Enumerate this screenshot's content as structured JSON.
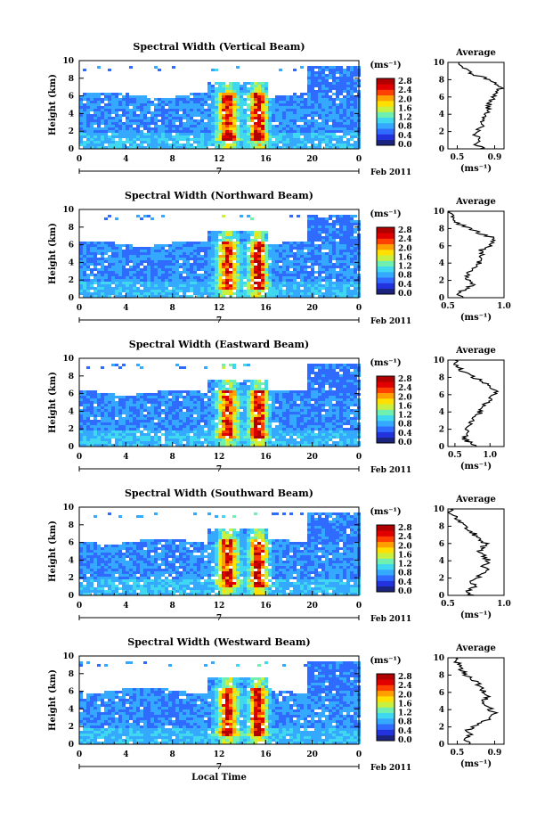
{
  "figure": {
    "xlabel_bottom": "Local Time",
    "date_label": "Feb 2011",
    "day_label": "7"
  },
  "colors": {
    "scale": [
      "#1a237e",
      "#2233dd",
      "#2f6bff",
      "#35a8ff",
      "#3fd8f0",
      "#6ff0b0",
      "#c8f040",
      "#ffe000",
      "#ffa000",
      "#ff4000",
      "#e00000",
      "#b00000"
    ]
  },
  "chart_data": [
    {
      "type": "heatmap",
      "title": "Spectral Width (Vertical Beam)",
      "ylabel": "Height (km)",
      "xticks": [
        "0",
        "4",
        "8",
        "12",
        "16",
        "20",
        "0"
      ],
      "xlim": [
        0,
        24
      ],
      "yticks": [
        "0",
        "2",
        "4",
        "6",
        "8",
        "10"
      ],
      "ylim": [
        0,
        10
      ],
      "colorbar": {
        "unit": "(ms⁻¹)",
        "ticks": [
          "0.0",
          "0.4",
          "0.8",
          "1.2",
          "1.6",
          "2.0",
          "2.4",
          "2.8"
        ]
      },
      "profile": {
        "title": "Average",
        "xlabel": "(ms⁻¹)",
        "xticks": [
          "0.5",
          "0.9"
        ],
        "xlim": [
          0.4,
          1.0
        ],
        "yticks": [
          "0",
          "2",
          "4",
          "6",
          "8",
          "10"
        ],
        "height": [
          0,
          0.5,
          1,
          1.5,
          2,
          2.5,
          3,
          3.5,
          4,
          4.5,
          5,
          5.5,
          6,
          6.5,
          7,
          7.5,
          8,
          8.5,
          9,
          9.5,
          10
        ],
        "value": [
          0.78,
          0.7,
          0.73,
          0.7,
          0.72,
          0.75,
          0.78,
          0.8,
          0.82,
          0.83,
          0.84,
          0.86,
          0.88,
          0.92,
          0.96,
          0.9,
          0.85,
          0.7,
          0.6,
          0.55,
          0.52
        ]
      }
    },
    {
      "type": "heatmap",
      "title": "Spectral Width (Northward Beam)",
      "ylabel": "Height (km)",
      "xticks": [
        "0",
        "4",
        "8",
        "12",
        "16",
        "20",
        "0"
      ],
      "xlim": [
        0,
        24
      ],
      "yticks": [
        "0",
        "2",
        "4",
        "6",
        "8",
        "10"
      ],
      "ylim": [
        0,
        10
      ],
      "colorbar": {
        "unit": "(ms⁻¹)",
        "ticks": [
          "0.0",
          "0.4",
          "0.8",
          "1.2",
          "1.6",
          "2.0",
          "2.4",
          "2.8"
        ]
      },
      "profile": {
        "title": "Average",
        "xlabel": "(ms⁻¹)",
        "xticks": [
          "0.5",
          "1.0"
        ],
        "xlim": [
          0.5,
          1.0
        ],
        "yticks": [
          "0",
          "2",
          "4",
          "6",
          "8",
          "10"
        ],
        "height": [
          0,
          0.5,
          1,
          1.5,
          2,
          2.5,
          3,
          3.5,
          4,
          4.5,
          5,
          5.5,
          6,
          6.5,
          7,
          7.5,
          8,
          8.5,
          9,
          9.5,
          10
        ],
        "value": [
          0.62,
          0.58,
          0.66,
          0.72,
          0.68,
          0.66,
          0.7,
          0.74,
          0.78,
          0.8,
          0.82,
          0.8,
          0.86,
          0.9,
          0.88,
          0.78,
          0.7,
          0.6,
          0.56,
          0.54,
          0.52
        ]
      }
    },
    {
      "type": "heatmap",
      "title": "Spectral Width (Eastward Beam)",
      "ylabel": "Height (km)",
      "xticks": [
        "0",
        "4",
        "8",
        "12",
        "16",
        "20",
        "0"
      ],
      "xlim": [
        0,
        24
      ],
      "yticks": [
        "0",
        "2",
        "4",
        "6",
        "8",
        "10"
      ],
      "ylim": [
        0,
        10
      ],
      "colorbar": {
        "unit": "(ms⁻¹)",
        "ticks": [
          "0.0",
          "0.4",
          "0.8",
          "1.2",
          "1.6",
          "2.0",
          "2.4",
          "2.8"
        ]
      },
      "profile": {
        "title": "Average",
        "xlabel": "(ms⁻¹)",
        "xticks": [
          "0.5",
          "1.0"
        ],
        "xlim": [
          0.4,
          1.2
        ],
        "yticks": [
          "0",
          "2",
          "4",
          "6",
          "8",
          "10"
        ],
        "height": [
          0,
          0.5,
          1,
          1.5,
          2,
          2.5,
          3,
          3.5,
          4,
          4.5,
          5,
          5.5,
          6,
          6.5,
          7,
          7.5,
          8,
          8.5,
          9,
          9.5,
          10
        ],
        "value": [
          0.78,
          0.7,
          0.62,
          0.7,
          0.68,
          0.72,
          0.75,
          0.8,
          0.86,
          0.9,
          0.95,
          1.0,
          1.05,
          1.1,
          1.0,
          0.9,
          0.78,
          0.65,
          0.56,
          0.52,
          0.5
        ]
      }
    },
    {
      "type": "heatmap",
      "title": "Spectral Width (Southward Beam)",
      "ylabel": "Height (km)",
      "xticks": [
        "0",
        "4",
        "8",
        "12",
        "16",
        "20",
        "0"
      ],
      "xlim": [
        0,
        24
      ],
      "yticks": [
        "0",
        "2",
        "4",
        "6",
        "8",
        "10"
      ],
      "ylim": [
        0,
        10
      ],
      "colorbar": {
        "unit": "(ms⁻¹)",
        "ticks": [
          "0.0",
          "0.4",
          "0.8",
          "1.2",
          "1.6",
          "2.0",
          "2.4",
          "2.8"
        ]
      },
      "profile": {
        "title": "Average",
        "xlabel": "(ms⁻¹)",
        "xticks": [
          "0.5",
          "1.0"
        ],
        "xlim": [
          0.5,
          1.0
        ],
        "yticks": [
          "0",
          "2",
          "4",
          "6",
          "8",
          "10"
        ],
        "height": [
          0,
          0.5,
          1,
          1.5,
          2,
          2.5,
          3,
          3.5,
          4,
          4.5,
          5,
          5.5,
          6,
          6.5,
          7,
          7.5,
          8,
          8.5,
          9,
          9.5,
          10
        ],
        "value": [
          0.72,
          0.68,
          0.74,
          0.7,
          0.76,
          0.8,
          0.84,
          0.82,
          0.86,
          0.82,
          0.78,
          0.8,
          0.84,
          0.78,
          0.74,
          0.7,
          0.64,
          0.6,
          0.56,
          0.53,
          0.52
        ]
      }
    },
    {
      "type": "heatmap",
      "title": "Spectral Width (Westward Beam)",
      "ylabel": "Height (km)",
      "xticks": [
        "0",
        "4",
        "8",
        "12",
        "16",
        "20",
        "0"
      ],
      "xlim": [
        0,
        24
      ],
      "yticks": [
        "0",
        "2",
        "4",
        "6",
        "8",
        "10"
      ],
      "ylim": [
        0,
        10
      ],
      "colorbar": {
        "unit": "(ms⁻¹)",
        "ticks": [
          "0.0",
          "0.4",
          "0.8",
          "1.2",
          "1.6",
          "2.0",
          "2.4",
          "2.8"
        ]
      },
      "profile": {
        "title": "Average",
        "xlabel": "(ms⁻¹)",
        "xticks": [
          "0.5",
          "0.9"
        ],
        "xlim": [
          0.4,
          1.0
        ],
        "yticks": [
          "0",
          "2",
          "4",
          "6",
          "8",
          "10"
        ],
        "height": [
          0,
          0.5,
          1,
          1.5,
          2,
          2.5,
          3,
          3.5,
          4,
          4.5,
          5,
          5.5,
          6,
          6.5,
          7,
          7.5,
          8,
          8.5,
          9,
          9.5,
          10
        ],
        "value": [
          0.66,
          0.6,
          0.64,
          0.6,
          0.68,
          0.76,
          0.84,
          0.9,
          0.86,
          0.8,
          0.78,
          0.84,
          0.8,
          0.76,
          0.72,
          0.66,
          0.6,
          0.56,
          0.52,
          0.5,
          0.48
        ]
      }
    }
  ]
}
